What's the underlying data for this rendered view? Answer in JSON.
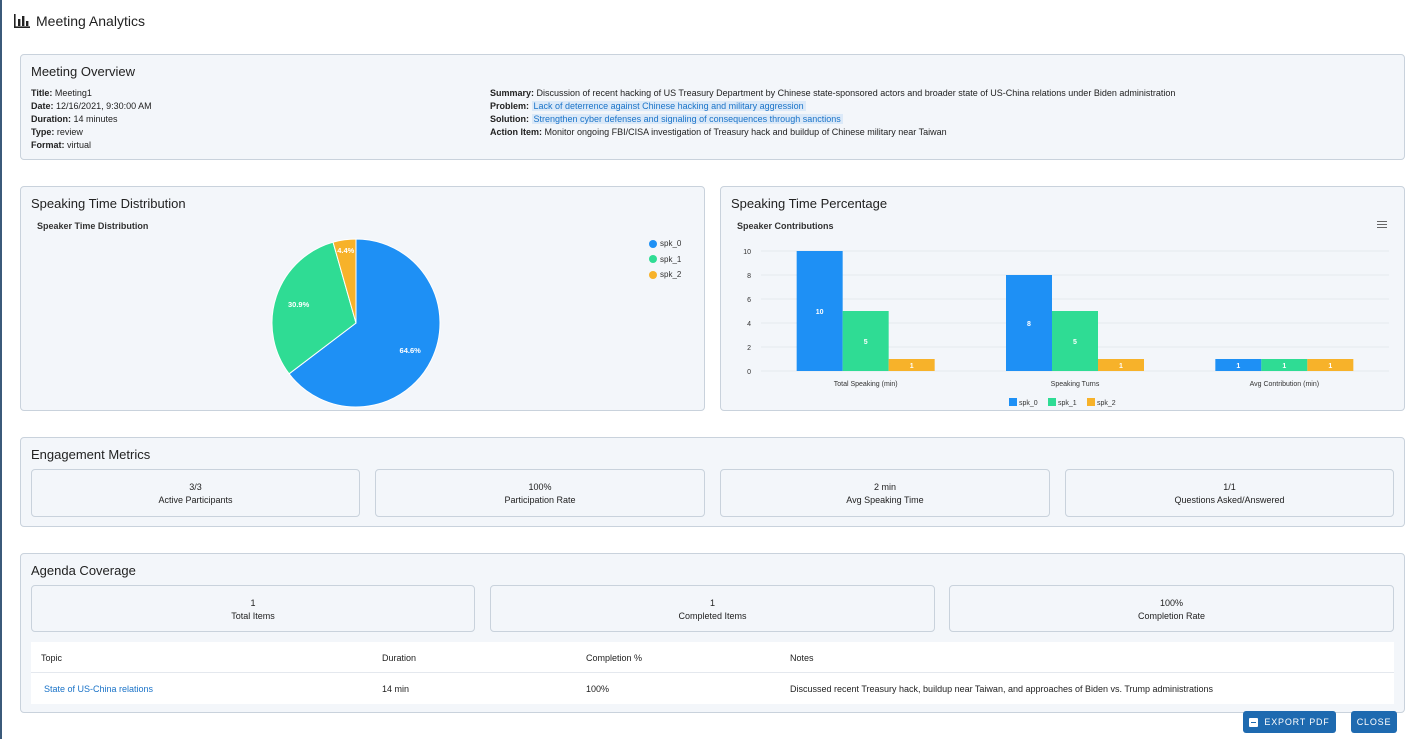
{
  "dialog": {
    "title": "Meeting Analytics",
    "icon": "bar-chart-icon"
  },
  "overview": {
    "heading": "Meeting Overview",
    "fields": [
      {
        "label": "Title:",
        "value": "Meeting1"
      },
      {
        "label": "Date:",
        "value": "12/16/2021, 9:30:00 AM"
      },
      {
        "label": "Duration:",
        "value": "14 minutes"
      },
      {
        "label": "Type:",
        "value": "review"
      },
      {
        "label": "Format:",
        "value": "virtual"
      }
    ],
    "summary": {
      "label": "Summary:",
      "value": "Discussion of recent hacking of US Treasury Department by Chinese state-sponsored actors and broader state of US-China relations under Biden administration"
    },
    "problem": {
      "label": "Problem:",
      "value": "Lack of deterrence against Chinese hacking and military aggression"
    },
    "solution": {
      "label": "Solution:",
      "value": "Strengthen cyber defenses and signaling of consequences through sanctions"
    },
    "action_item": {
      "label": "Action Item:",
      "value": "Monitor ongoing FBI/CISA investigation of Treasury hack and buildup of Chinese military near Taiwan"
    }
  },
  "colors": {
    "spk_0": "#1e90f5",
    "spk_1": "#2fdc94",
    "spk_2": "#f7b22a",
    "accent": "#1e6ab0"
  },
  "speaking_distribution": {
    "heading": "Speaking Time Distribution"
  },
  "speaking_percentage": {
    "heading": "Speaking Time Percentage",
    "menu_icon": "hamburger-menu-icon"
  },
  "chart_data": [
    {
      "type": "pie",
      "title": "Speaker Time Distribution",
      "labels": [
        "spk_0",
        "spk_1",
        "spk_2"
      ],
      "values": [
        64.6,
        30.9,
        4.4
      ],
      "data_labels": [
        "64.6%",
        "30.9%",
        "4.4%"
      ],
      "legend": "right"
    },
    {
      "type": "bar",
      "title": "Speaker Contributions",
      "categories": [
        "Total Speaking (min)",
        "Speaking Turns",
        "Avg Contribution (min)"
      ],
      "series": [
        {
          "name": "spk_0",
          "values": [
            10,
            8,
            1
          ]
        },
        {
          "name": "spk_1",
          "values": [
            5,
            5,
            1
          ]
        },
        {
          "name": "spk_2",
          "values": [
            1,
            1,
            1
          ]
        }
      ],
      "ylim": [
        0,
        10
      ],
      "yticks": [
        0,
        2,
        4,
        6,
        8,
        10
      ],
      "grid": true,
      "legend": "bottom"
    }
  ],
  "engagement": {
    "heading": "Engagement Metrics",
    "metrics": [
      {
        "value": "3/3",
        "label": "Active Participants"
      },
      {
        "value": "100%",
        "label": "Participation Rate"
      },
      {
        "value": "2 min",
        "label": "Avg Speaking Time"
      },
      {
        "value": "1/1",
        "label": "Questions Asked/Answered"
      }
    ]
  },
  "agenda": {
    "heading": "Agenda Coverage",
    "stats": [
      {
        "value": "1",
        "label": "Total Items"
      },
      {
        "value": "1",
        "label": "Completed Items"
      },
      {
        "value": "100%",
        "label": "Completion Rate"
      }
    ],
    "columns": [
      "Topic",
      "Duration",
      "Completion %",
      "Notes"
    ],
    "rows": [
      {
        "topic": "State of US-China relations",
        "duration": "14 min",
        "completion": "100%",
        "notes": "Discussed recent Treasury hack, buildup near Taiwan, and approaches of Biden vs. Trump administrations"
      }
    ]
  },
  "actions": {
    "export_label": "EXPORT PDF",
    "close_label": "CLOSE"
  }
}
